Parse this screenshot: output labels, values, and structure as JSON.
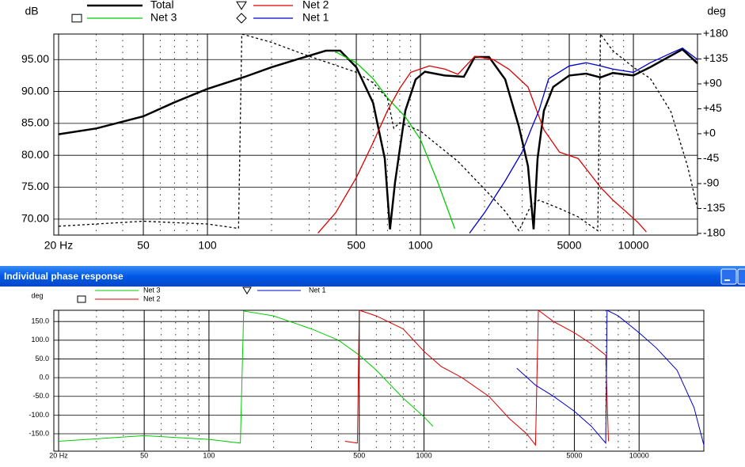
{
  "window": {
    "title": "Individual phase response"
  },
  "chart_data": [
    {
      "type": "line",
      "x_scale": "log",
      "y_label": "dB",
      "y2_label": "deg",
      "xlim": [
        19,
        20000
      ],
      "xticks": [
        {
          "value": 20,
          "label": "20 Hz"
        },
        50,
        100,
        500,
        1000,
        5000,
        10000
      ],
      "ylim": [
        67.5,
        99
      ],
      "yticks": [
        {
          "value": 70,
          "label": "70.00"
        },
        {
          "value": 75,
          "label": "75.00"
        },
        {
          "value": 80,
          "label": "80.00"
        },
        {
          "value": 85,
          "label": "85.00"
        },
        {
          "value": 90,
          "label": "90.00"
        },
        {
          "value": 95,
          "label": "95.00"
        }
      ],
      "y2lim": [
        -183,
        180
      ],
      "y2ticks": [
        -180,
        -135,
        -90,
        -45,
        {
          "value": 0,
          "label": "+0"
        },
        {
          "value": 45,
          "label": "+45"
        },
        {
          "value": 90,
          "label": "+90"
        },
        {
          "value": 135,
          "label": "+135"
        },
        {
          "value": 180,
          "label": "+180"
        }
      ],
      "grid": true,
      "series": [
        {
          "name": "Total",
          "color": "#000000",
          "width": 2.5,
          "x": [
            20,
            30,
            50,
            70,
            100,
            150,
            200,
            300,
            360,
            420,
            500,
            600,
            680,
            720,
            760,
            850,
            950,
            1050,
            1300,
            1600,
            1800,
            2100,
            2500,
            2900,
            3200,
            3400,
            3550,
            3800,
            4200,
            5000,
            6000,
            7000,
            8000,
            10000,
            12000,
            15000,
            17000,
            20000
          ],
          "values": [
            83.3,
            84.2,
            86.1,
            88.3,
            90.4,
            92.3,
            93.8,
            95.6,
            96.4,
            96.4,
            93.8,
            88.2,
            79.5,
            68.4,
            75.8,
            87,
            91.9,
            93.1,
            92.5,
            92.3,
            95.4,
            95.4,
            91.9,
            84.5,
            78.3,
            68.4,
            79.5,
            87,
            90.7,
            92.5,
            92.8,
            92.2,
            92.9,
            92.5,
            93.8,
            95.6,
            96.6,
            94.4
          ]
        },
        {
          "name": "Net 3",
          "color": "#00cc00",
          "marker": "square",
          "x": [
            400,
            500,
            600,
            700,
            850,
            1000,
            1200,
            1450
          ],
          "values": [
            96.2,
            94.5,
            92,
            89,
            86,
            82.5,
            76,
            68.5
          ]
        },
        {
          "name": "Net 2",
          "color": "#dd0000",
          "marker": "triangle",
          "x": [
            330,
            400,
            500,
            600,
            700,
            800,
            900,
            1100,
            1300,
            1500,
            1800,
            2200,
            2600,
            3200,
            3800,
            4500,
            5500,
            7000,
            8000,
            9000,
            10500,
            11500
          ],
          "values": [
            67.8,
            71,
            76.5,
            82,
            87,
            90.5,
            93,
            94,
            93.5,
            92.7,
            95.5,
            95,
            93.5,
            90.7,
            84,
            80.5,
            79.5,
            75,
            73,
            71.5,
            69.5,
            68
          ]
        },
        {
          "name": "Net 1",
          "color": "#0000cc",
          "marker": "diamond",
          "x": [
            1700,
            2000,
            2500,
            3000,
            3300,
            3600,
            4000,
            5000,
            6000,
            7000,
            8000,
            10000,
            12000,
            15000,
            17000,
            20000
          ],
          "values": [
            67.8,
            71,
            76,
            80.5,
            84,
            87,
            92,
            94,
            94.5,
            94,
            93.5,
            93,
            94.5,
            96,
            96.8,
            95
          ]
        },
        {
          "color": "#000000",
          "dash": true,
          "axis": "y2",
          "x": [
            20,
            50,
            100,
            140,
            145,
            200,
            300,
            500,
            600,
            700,
            750,
            800,
            1000,
            1200,
            1500,
            2000,
            2500,
            2900,
            3300,
            3600,
            4500,
            5500,
            6800,
            7000,
            8000,
            10000,
            12000,
            15000,
            18000,
            20000
          ],
          "values": [
            -167,
            -158,
            -163,
            -171,
            180,
            165,
            140,
            111,
            92,
            64,
            10,
            20,
            5,
            -20,
            -50,
            -100,
            -140,
            -175,
            -130,
            -120,
            -135,
            -150,
            -175,
            180,
            150,
            120,
            100,
            40,
            -60,
            -135
          ]
        }
      ]
    },
    {
      "type": "line",
      "x_scale": "log",
      "y_label": "deg",
      "xlim": [
        19,
        20000
      ],
      "xticks": [
        {
          "value": 20,
          "label": "20 Hz"
        },
        50,
        100,
        500,
        1000,
        5000,
        10000
      ],
      "ylim": [
        -196.5,
        180
      ],
      "yticks": [
        {
          "value": -150,
          "label": "-150.0"
        },
        {
          "value": -100,
          "label": "-100.0"
        },
        {
          "value": -50,
          "label": "-50.0"
        },
        {
          "value": 0,
          "label": "0.0"
        },
        {
          "value": 50,
          "label": "50.0"
        },
        {
          "value": 100,
          "label": "100.0"
        },
        {
          "value": 150,
          "label": "150.0"
        }
      ],
      "grid": true,
      "series": [
        {
          "name": "Net 3",
          "color": "#00cc00",
          "x": [
            20,
            50,
            100,
            140,
            145,
            200,
            300,
            400,
            500,
            600,
            700,
            800,
            1000,
            1100
          ],
          "values": [
            -170,
            -155,
            -165,
            -175,
            178,
            165,
            130,
            100,
            60,
            20,
            -20,
            -55,
            -105,
            -130
          ]
        },
        {
          "name": "Net 2",
          "color": "#dd0000",
          "marker": "square",
          "x": [
            430,
            490,
            500,
            600,
            800,
            1000,
            1200,
            1500,
            2000,
            2500,
            3000,
            3300,
            3400,
            4000,
            5000,
            6000,
            7000,
            7200
          ],
          "values": [
            -170,
            -175,
            180,
            165,
            130,
            70,
            30,
            0,
            -50,
            -110,
            -150,
            -180,
            180,
            150,
            120,
            90,
            60,
            -170
          ]
        },
        {
          "name": "Net 1",
          "color": "#0000cc",
          "marker": "triangle",
          "x": [
            2700,
            3300,
            4000,
            5000,
            6000,
            7000,
            7100,
            8000,
            10000,
            12000,
            15000,
            18000,
            20000
          ],
          "values": [
            25,
            -20,
            -50,
            -90,
            -130,
            -175,
            180,
            165,
            120,
            80,
            20,
            -80,
            -180
          ]
        }
      ]
    }
  ]
}
